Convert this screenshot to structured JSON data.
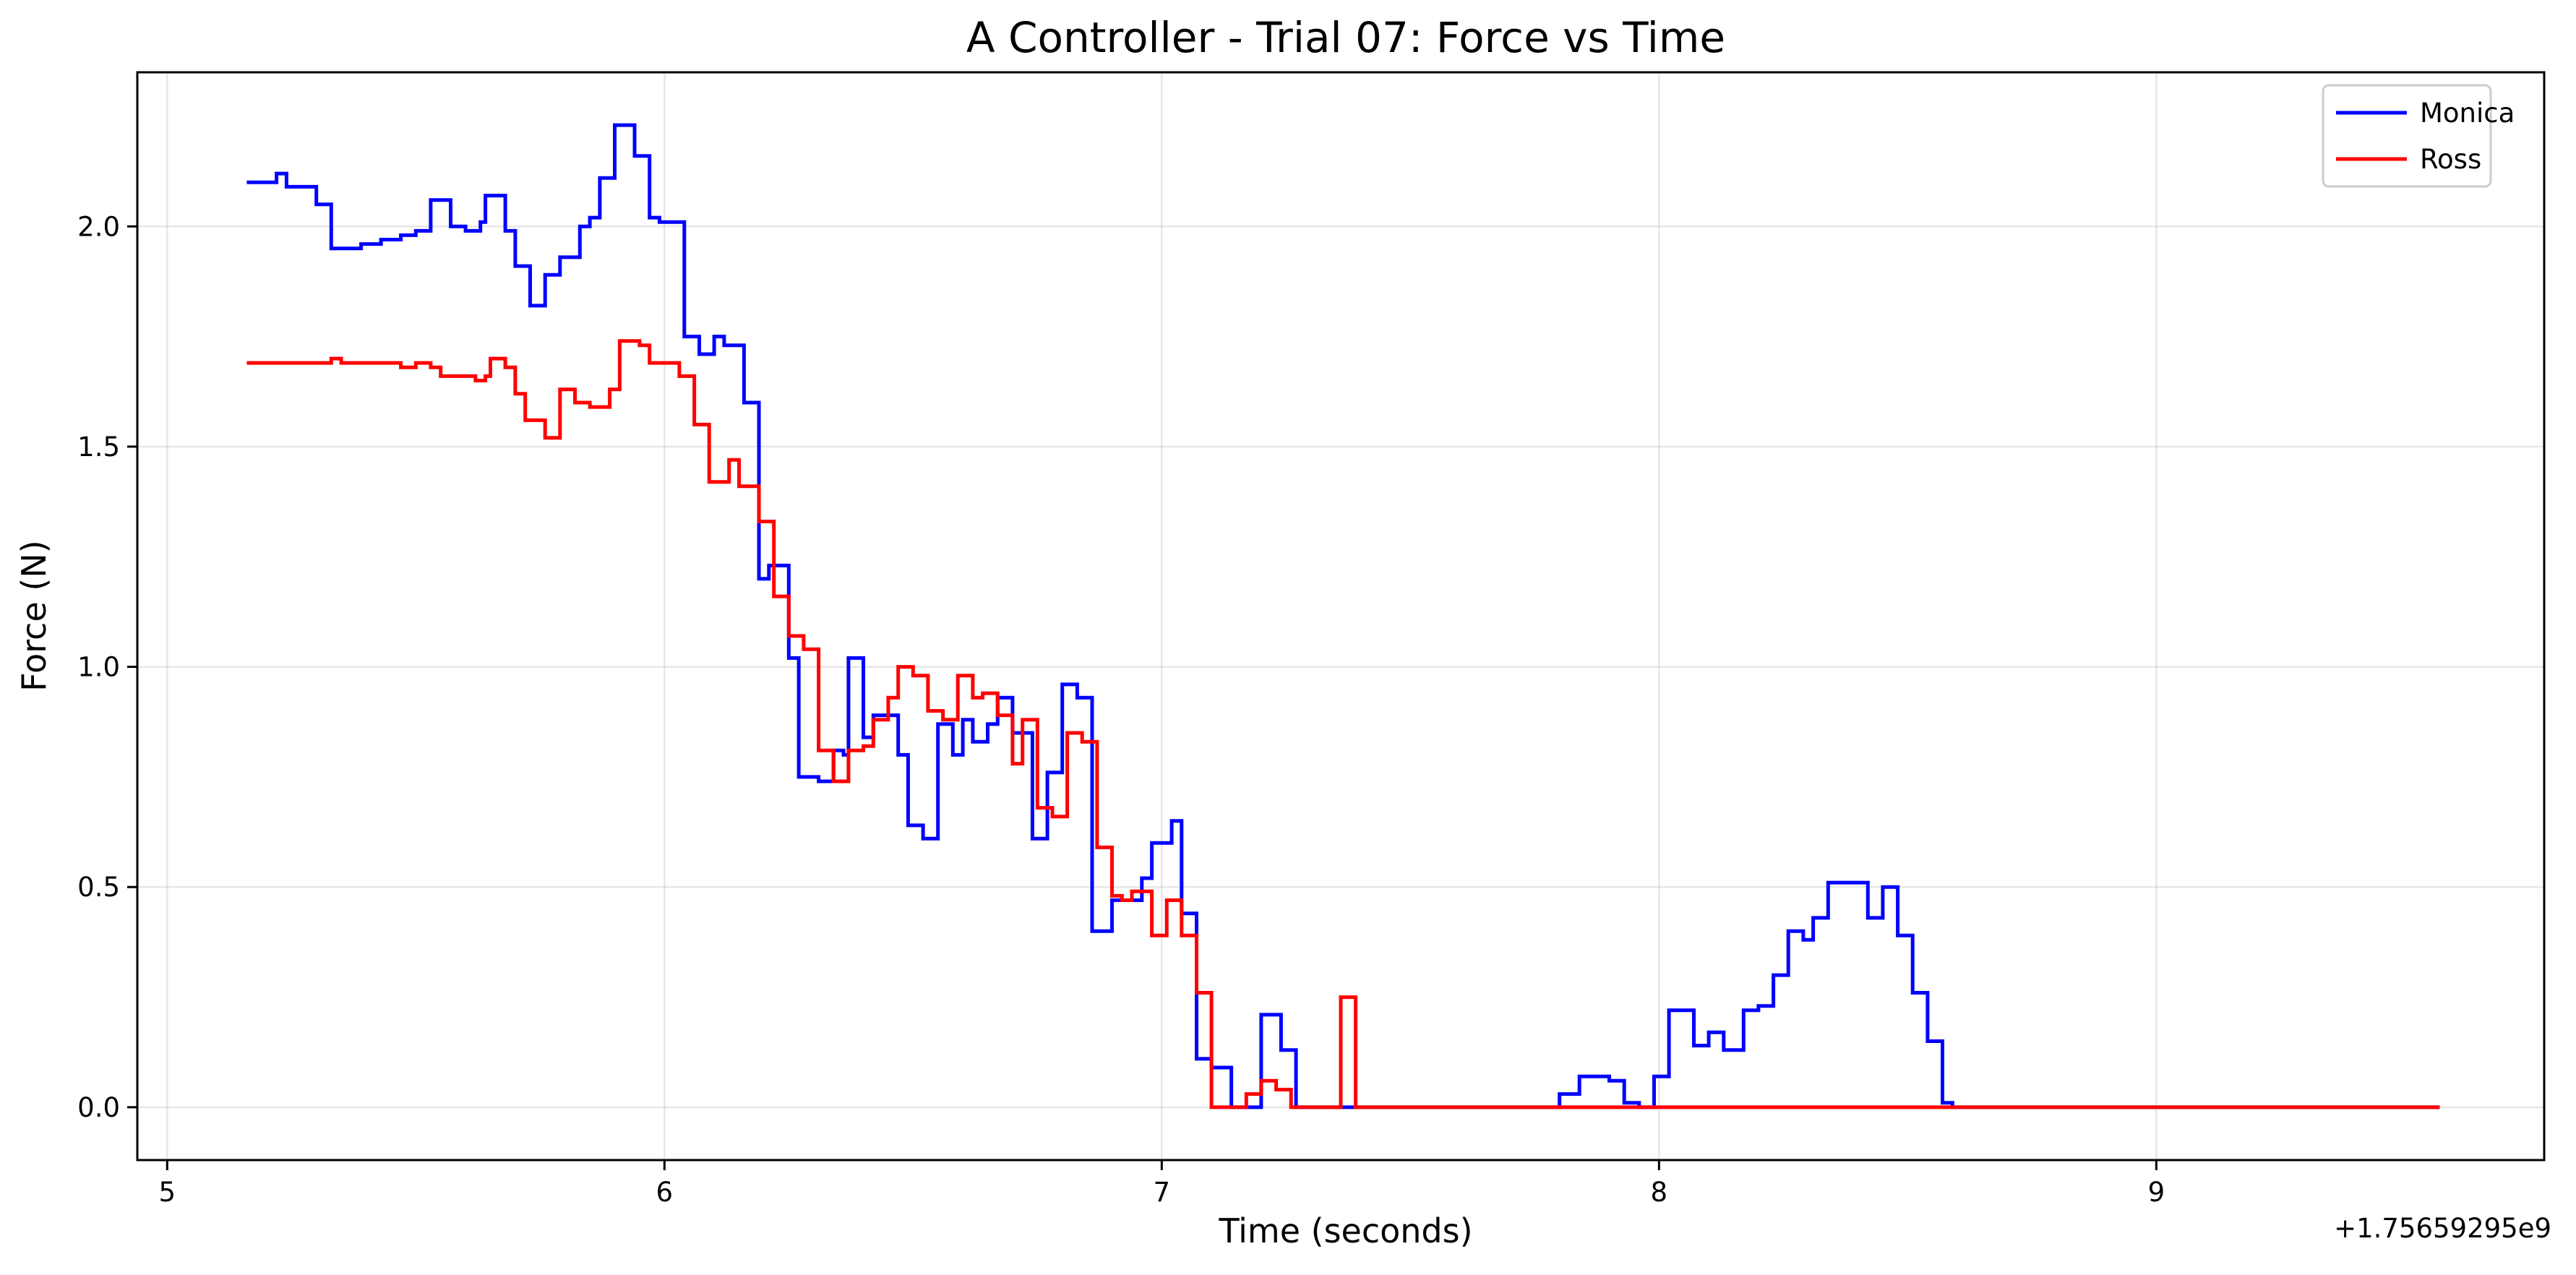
{
  "chart_data": {
    "type": "line",
    "step": true,
    "title": "A Controller - Trial 07: Force vs Time",
    "xlabel": "Time (seconds)",
    "ylabel": "Force (N)",
    "x_offset_label": "+1.75659295e9",
    "xlim": [
      4.94,
      9.78
    ],
    "ylim": [
      -0.12,
      2.35
    ],
    "xticks": [
      5,
      6,
      7,
      8,
      9
    ],
    "xtick_labels": [
      "5",
      "6",
      "7",
      "8",
      "9"
    ],
    "yticks": [
      0.0,
      0.5,
      1.0,
      1.5,
      2.0
    ],
    "ytick_labels": [
      "0.0",
      "0.5",
      "1.0",
      "1.5",
      "2.0"
    ],
    "grid": true,
    "legend_position": "top-right",
    "series": [
      {
        "name": "Monica",
        "color": "#0000ff",
        "points": [
          [
            5.16,
            2.1
          ],
          [
            5.17,
            2.1
          ],
          [
            5.22,
            2.12
          ],
          [
            5.24,
            2.09
          ],
          [
            5.28,
            2.09
          ],
          [
            5.3,
            2.05
          ],
          [
            5.32,
            2.05
          ],
          [
            5.33,
            1.95
          ],
          [
            5.39,
            1.96
          ],
          [
            5.43,
            1.97
          ],
          [
            5.46,
            1.97
          ],
          [
            5.47,
            1.98
          ],
          [
            5.5,
            1.99
          ],
          [
            5.53,
            2.06
          ],
          [
            5.57,
            2.0
          ],
          [
            5.6,
            1.99
          ],
          [
            5.63,
            2.01
          ],
          [
            5.64,
            2.07
          ],
          [
            5.68,
            1.99
          ],
          [
            5.7,
            1.91
          ],
          [
            5.73,
            1.82
          ],
          [
            5.76,
            1.89
          ],
          [
            5.79,
            1.93
          ],
          [
            5.83,
            2.0
          ],
          [
            5.85,
            2.02
          ],
          [
            5.87,
            2.11
          ],
          [
            5.9,
            2.23
          ],
          [
            5.94,
            2.16
          ],
          [
            5.97,
            2.02
          ],
          [
            5.99,
            2.01
          ],
          [
            6.04,
            1.75
          ],
          [
            6.07,
            1.71
          ],
          [
            6.1,
            1.75
          ],
          [
            6.12,
            1.73
          ],
          [
            6.16,
            1.6
          ],
          [
            6.19,
            1.2
          ],
          [
            6.21,
            1.23
          ],
          [
            6.25,
            1.02
          ],
          [
            6.27,
            0.75
          ],
          [
            6.31,
            0.74
          ],
          [
            6.34,
            0.81
          ],
          [
            6.36,
            0.8
          ],
          [
            6.37,
            1.02
          ],
          [
            6.4,
            0.84
          ],
          [
            6.42,
            0.89
          ],
          [
            6.45,
            0.89
          ],
          [
            6.47,
            0.8
          ],
          [
            6.49,
            0.64
          ],
          [
            6.52,
            0.61
          ],
          [
            6.55,
            0.87
          ],
          [
            6.58,
            0.8
          ],
          [
            6.6,
            0.88
          ],
          [
            6.62,
            0.83
          ],
          [
            6.65,
            0.87
          ],
          [
            6.67,
            0.93
          ],
          [
            6.7,
            0.85
          ],
          [
            6.74,
            0.61
          ],
          [
            6.77,
            0.76
          ],
          [
            6.8,
            0.96
          ],
          [
            6.83,
            0.93
          ],
          [
            6.86,
            0.4
          ],
          [
            6.9,
            0.47
          ],
          [
            6.92,
            0.47
          ],
          [
            6.96,
            0.52
          ],
          [
            6.98,
            0.6
          ],
          [
            7.02,
            0.65
          ],
          [
            7.04,
            0.44
          ],
          [
            7.07,
            0.11
          ],
          [
            7.1,
            0.09
          ],
          [
            7.14,
            0.0
          ],
          [
            7.17,
            0.0
          ],
          [
            7.2,
            0.21
          ],
          [
            7.24,
            0.13
          ],
          [
            7.27,
            0.0
          ],
          [
            7.8,
            0.0
          ],
          [
            7.8,
            0.03
          ],
          [
            7.84,
            0.07
          ],
          [
            7.9,
            0.06
          ],
          [
            7.93,
            0.01
          ],
          [
            7.96,
            0.0
          ],
          [
            7.99,
            0.07
          ],
          [
            8.02,
            0.22
          ],
          [
            8.07,
            0.14
          ],
          [
            8.1,
            0.17
          ],
          [
            8.13,
            0.13
          ],
          [
            8.17,
            0.22
          ],
          [
            8.2,
            0.23
          ],
          [
            8.23,
            0.3
          ],
          [
            8.26,
            0.4
          ],
          [
            8.29,
            0.38
          ],
          [
            8.31,
            0.43
          ],
          [
            8.34,
            0.51
          ],
          [
            8.4,
            0.51
          ],
          [
            8.42,
            0.43
          ],
          [
            8.45,
            0.5
          ],
          [
            8.48,
            0.39
          ],
          [
            8.51,
            0.26
          ],
          [
            8.54,
            0.15
          ],
          [
            8.57,
            0.01
          ],
          [
            8.59,
            0.0
          ],
          [
            9.57,
            0.0
          ]
        ]
      },
      {
        "name": "Ross",
        "color": "#ff0000",
        "points": [
          [
            5.16,
            1.69
          ],
          [
            5.28,
            1.69
          ],
          [
            5.3,
            1.69
          ],
          [
            5.33,
            1.7
          ],
          [
            5.35,
            1.69
          ],
          [
            5.38,
            1.69
          ],
          [
            5.43,
            1.69
          ],
          [
            5.47,
            1.68
          ],
          [
            5.5,
            1.69
          ],
          [
            5.53,
            1.68
          ],
          [
            5.55,
            1.66
          ],
          [
            5.6,
            1.66
          ],
          [
            5.62,
            1.65
          ],
          [
            5.64,
            1.66
          ],
          [
            5.65,
            1.7
          ],
          [
            5.68,
            1.68
          ],
          [
            5.7,
            1.62
          ],
          [
            5.72,
            1.56
          ],
          [
            5.76,
            1.52
          ],
          [
            5.79,
            1.63
          ],
          [
            5.82,
            1.6
          ],
          [
            5.85,
            1.59
          ],
          [
            5.89,
            1.63
          ],
          [
            5.91,
            1.74
          ],
          [
            5.95,
            1.73
          ],
          [
            5.97,
            1.69
          ],
          [
            6.03,
            1.66
          ],
          [
            6.06,
            1.55
          ],
          [
            6.09,
            1.42
          ],
          [
            6.13,
            1.47
          ],
          [
            6.15,
            1.41
          ],
          [
            6.19,
            1.33
          ],
          [
            6.22,
            1.16
          ],
          [
            6.25,
            1.07
          ],
          [
            6.28,
            1.04
          ],
          [
            6.31,
            0.81
          ],
          [
            6.34,
            0.74
          ],
          [
            6.37,
            0.81
          ],
          [
            6.4,
            0.82
          ],
          [
            6.42,
            0.88
          ],
          [
            6.45,
            0.93
          ],
          [
            6.47,
            1.0
          ],
          [
            6.5,
            0.98
          ],
          [
            6.53,
            0.9
          ],
          [
            6.56,
            0.88
          ],
          [
            6.59,
            0.98
          ],
          [
            6.62,
            0.93
          ],
          [
            6.64,
            0.94
          ],
          [
            6.67,
            0.89
          ],
          [
            6.7,
            0.78
          ],
          [
            6.72,
            0.88
          ],
          [
            6.75,
            0.68
          ],
          [
            6.78,
            0.66
          ],
          [
            6.81,
            0.85
          ],
          [
            6.84,
            0.83
          ],
          [
            6.87,
            0.59
          ],
          [
            6.9,
            0.48
          ],
          [
            6.92,
            0.47
          ],
          [
            6.94,
            0.49
          ],
          [
            6.98,
            0.39
          ],
          [
            7.01,
            0.47
          ],
          [
            7.04,
            0.39
          ],
          [
            7.07,
            0.26
          ],
          [
            7.1,
            0.0
          ],
          [
            7.17,
            0.03
          ],
          [
            7.2,
            0.06
          ],
          [
            7.23,
            0.04
          ],
          [
            7.26,
            0.0
          ],
          [
            7.36,
            0.0
          ],
          [
            7.36,
            0.25
          ],
          [
            7.39,
            0.0
          ],
          [
            9.57,
            0.0
          ]
        ]
      }
    ]
  }
}
